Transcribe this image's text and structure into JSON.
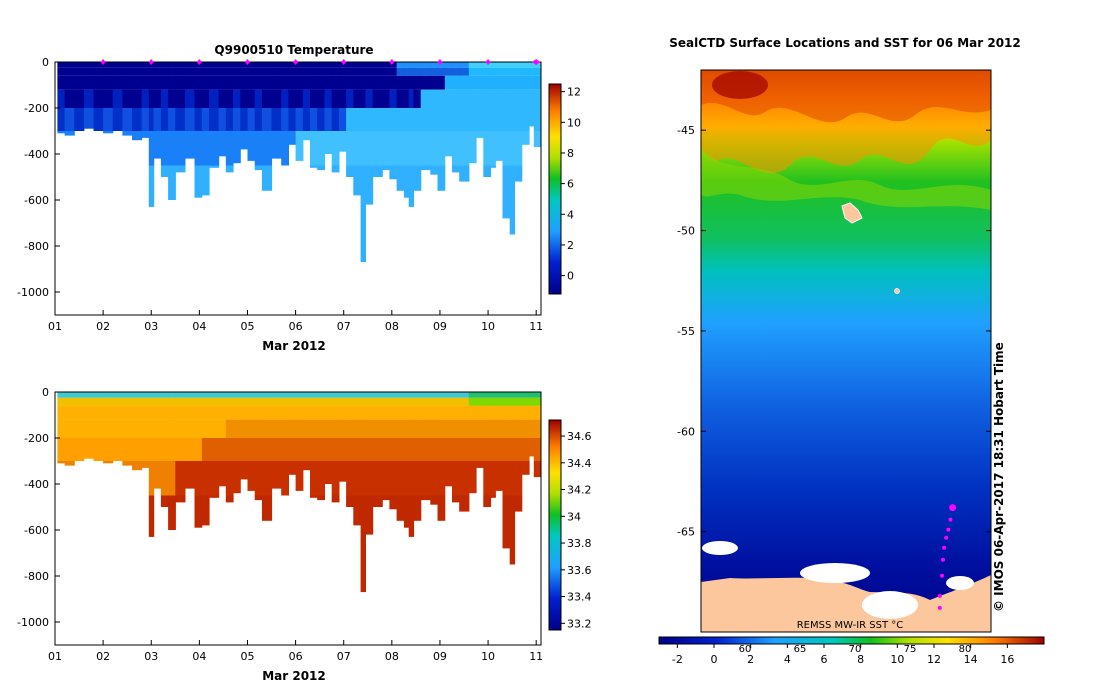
{
  "chart_data": [
    {
      "type": "heatmap",
      "title": "Q9900510  Temperature",
      "xlabel": "Mar 2012",
      "x_ticks": [
        "01",
        "02",
        "03",
        "04",
        "05",
        "06",
        "07",
        "08",
        "09",
        "10",
        "11"
      ],
      "y_ticks": [
        "0",
        "-200",
        "-400",
        "-600",
        "-800",
        "-1000"
      ],
      "ylim": [
        -1100,
        0
      ],
      "xlim": [
        1,
        11.1
      ],
      "colorbar_ticks": [
        "12",
        "10",
        "8",
        "6",
        "4",
        "2",
        "0"
      ],
      "colorbar_range": [
        -1.2,
        12.5
      ],
      "surface_markers": [
        2,
        3,
        4,
        5,
        6,
        7,
        8,
        9,
        10,
        11
      ],
      "profiles": {
        "x": [
          1.1,
          1.3,
          1.5,
          1.7,
          1.9,
          2.1,
          2.3,
          2.5,
          2.7,
          2.9,
          3.0,
          3.1,
          3.3,
          3.4,
          3.6,
          3.8,
          4.0,
          4.1,
          4.3,
          4.5,
          4.6,
          4.8,
          4.9,
          5.1,
          5.2,
          5.4,
          5.6,
          5.8,
          5.9,
          6.1,
          6.2,
          6.4,
          6.5,
          6.7,
          6.8,
          7.0,
          7.1,
          7.3,
          7.4,
          7.5,
          7.7,
          7.9,
          8.0,
          8.2,
          8.3,
          8.4,
          8.5,
          8.7,
          8.9,
          9.0,
          9.2,
          9.3,
          9.5,
          9.7,
          9.8,
          10.0,
          10.1,
          10.2,
          10.4,
          10.5,
          10.6,
          10.8,
          10.9,
          11.0
        ],
        "max_depth": [
          310,
          320,
          300,
          290,
          300,
          310,
          300,
          320,
          340,
          330,
          630,
          420,
          500,
          600,
          480,
          420,
          590,
          580,
          460,
          410,
          480,
          440,
          380,
          430,
          470,
          560,
          420,
          450,
          360,
          430,
          340,
          460,
          470,
          400,
          480,
          390,
          500,
          580,
          870,
          620,
          500,
          470,
          510,
          560,
          590,
          630,
          560,
          470,
          490,
          560,
          410,
          480,
          520,
          440,
          330,
          500,
          460,
          430,
          680,
          750,
          520,
          360,
          280,
          370
        ]
      }
    },
    {
      "type": "heatmap",
      "title": "",
      "xlabel": "Mar 2012",
      "x_ticks": [
        "01",
        "02",
        "03",
        "04",
        "05",
        "06",
        "07",
        "08",
        "09",
        "10",
        "11"
      ],
      "y_ticks": [
        "0",
        "-200",
        "-400",
        "-600",
        "-800",
        "-1000"
      ],
      "ylim": [
        -1100,
        0
      ],
      "xlim": [
        1,
        11.1
      ],
      "colorbar_ticks": [
        "34.6",
        "34.4",
        "34.2",
        "34",
        "33.8",
        "33.6",
        "33.4",
        "33.2"
      ],
      "colorbar_range": [
        33.15,
        34.72
      ]
    },
    {
      "type": "heatmap",
      "title": "SealCTD Surface Locations and SST for 06 Mar 2012",
      "y_ticks": [
        "-45",
        "-50",
        "-55",
        "-60",
        "-65"
      ],
      "ylim": [
        -70,
        -42
      ],
      "top_ticks": [
        "60",
        "65",
        "70",
        "75",
        "80"
      ],
      "colorbar_ticks": [
        "-2",
        "0",
        "2",
        "4",
        "6",
        "8",
        "10",
        "12",
        "14",
        "16"
      ],
      "colorbar_range": [
        -3,
        18
      ],
      "source_label": "REMSS MW-IR SST °C",
      "side_label": "© IMOS 06-Apr-2017 18:31 Hobart Time",
      "track": {
        "lon": [
          82.6,
          82.5,
          82.4,
          82.3,
          82.2,
          82.15,
          82.1,
          82.0,
          82.0
        ],
        "lat": [
          -63.8,
          -64.4,
          -64.9,
          -65.3,
          -65.8,
          -66.4,
          -67.2,
          -68.2,
          -68.8
        ]
      }
    }
  ]
}
